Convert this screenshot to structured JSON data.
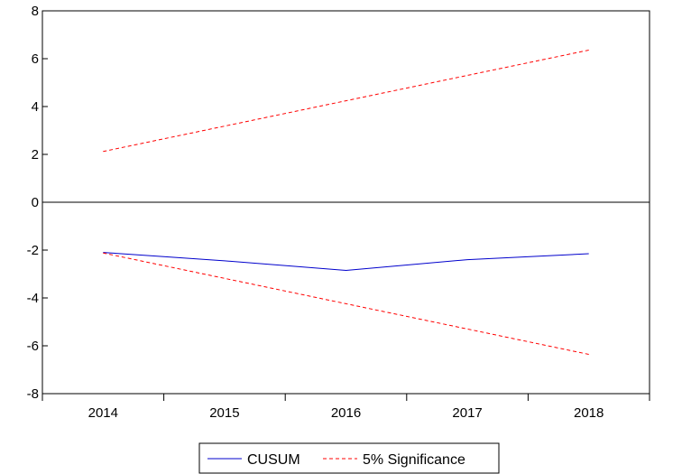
{
  "chart_data": {
    "type": "line",
    "x": [
      "2014",
      "2015",
      "2016",
      "2017",
      "2018"
    ],
    "ylim": [
      -8,
      8
    ],
    "yticks": [
      8,
      6,
      4,
      2,
      0,
      -2,
      -4,
      -6,
      -8
    ],
    "zero_line": true,
    "grid": false,
    "legend_position": "bottom-center",
    "series": [
      {
        "name": "CUSUM",
        "values": [
          -2.1,
          -2.45,
          -2.85,
          -2.4,
          -2.15
        ],
        "color": "#0000CC",
        "style": "solid"
      },
      {
        "name": "5% Significance",
        "values": [
          2.12,
          3.18,
          4.24,
          5.3,
          6.36
        ],
        "color": "#FF0000",
        "style": "dashed"
      },
      {
        "name": "5% Significance",
        "values": [
          -2.12,
          -3.18,
          -4.24,
          -5.3,
          -6.36
        ],
        "color": "#FF0000",
        "style": "dashed",
        "hide_in_legend": true
      }
    ]
  }
}
